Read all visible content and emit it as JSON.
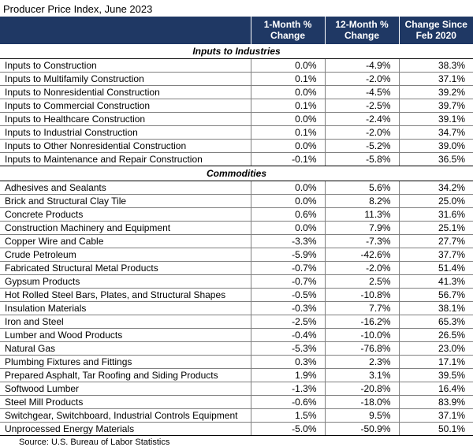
{
  "title": "Producer Price Index, June 2023",
  "columns": [
    "1-Month % Change",
    "12-Month % Change",
    "Change Since Feb 2020"
  ],
  "sections": [
    {
      "name": "Inputs to Industries",
      "rows": [
        {
          "label": "Inputs to Construction",
          "v1": "0.0%",
          "v2": "-4.9%",
          "v3": "38.3%"
        },
        {
          "label": "Inputs to Multifamily Construction",
          "v1": "0.1%",
          "v2": "-2.0%",
          "v3": "37.1%"
        },
        {
          "label": "Inputs to Nonresidential Construction",
          "v1": "0.0%",
          "v2": "-4.5%",
          "v3": "39.2%"
        },
        {
          "label": "Inputs to Commercial Construction",
          "v1": "0.1%",
          "v2": "-2.5%",
          "v3": "39.7%"
        },
        {
          "label": "Inputs to Healthcare Construction",
          "v1": "0.0%",
          "v2": "-2.4%",
          "v3": "39.1%"
        },
        {
          "label": "Inputs to Industrial Construction",
          "v1": "0.1%",
          "v2": "-2.0%",
          "v3": "34.7%"
        },
        {
          "label": "Inputs to Other Nonresidential Construction",
          "v1": "0.0%",
          "v2": "-5.2%",
          "v3": "39.0%"
        },
        {
          "label": "Inputs to Maintenance and Repair Construction",
          "v1": "-0.1%",
          "v2": "-5.8%",
          "v3": "36.5%"
        }
      ]
    },
    {
      "name": "Commodities",
      "rows": [
        {
          "label": "Adhesives and Sealants",
          "v1": "0.0%",
          "v2": "5.6%",
          "v3": "34.2%"
        },
        {
          "label": "Brick and Structural Clay Tile",
          "v1": "0.0%",
          "v2": "8.2%",
          "v3": "25.0%"
        },
        {
          "label": "Concrete Products",
          "v1": "0.6%",
          "v2": "11.3%",
          "v3": "31.6%"
        },
        {
          "label": "Construction Machinery and Equipment",
          "v1": "0.0%",
          "v2": "7.9%",
          "v3": "25.1%"
        },
        {
          "label": "Copper Wire and Cable",
          "v1": "-3.3%",
          "v2": "-7.3%",
          "v3": "27.7%"
        },
        {
          "label": "Crude Petroleum",
          "v1": "-5.9%",
          "v2": "-42.6%",
          "v3": "37.7%"
        },
        {
          "label": "Fabricated Structural Metal Products",
          "v1": "-0.7%",
          "v2": "-2.0%",
          "v3": "51.4%"
        },
        {
          "label": "Gypsum Products",
          "v1": "-0.7%",
          "v2": "2.5%",
          "v3": "41.3%"
        },
        {
          "label": "Hot Rolled Steel Bars, Plates, and Structural Shapes",
          "v1": "-0.5%",
          "v2": "-10.8%",
          "v3": "56.7%"
        },
        {
          "label": "Insulation Materials",
          "v1": "-0.3%",
          "v2": "7.7%",
          "v3": "38.1%"
        },
        {
          "label": "Iron and Steel",
          "v1": "-2.5%",
          "v2": "-16.2%",
          "v3": "65.3%"
        },
        {
          "label": "Lumber and Wood Products",
          "v1": "-0.4%",
          "v2": "-10.0%",
          "v3": "26.5%"
        },
        {
          "label": "Natural Gas",
          "v1": "-5.3%",
          "v2": "-76.8%",
          "v3": "23.0%"
        },
        {
          "label": "Plumbing Fixtures and Fittings",
          "v1": "0.3%",
          "v2": "2.3%",
          "v3": "17.1%"
        },
        {
          "label": "Prepared Asphalt, Tar Roofing and Siding Products",
          "v1": "1.9%",
          "v2": "3.1%",
          "v3": "39.5%"
        },
        {
          "label": "Softwood Lumber",
          "v1": "-1.3%",
          "v2": "-20.8%",
          "v3": "16.4%"
        },
        {
          "label": "Steel Mill Products",
          "v1": "-0.6%",
          "v2": "-18.0%",
          "v3": "83.9%"
        },
        {
          "label": "Switchgear, Switchboard, Industrial Controls Equipment",
          "v1": "1.5%",
          "v2": "9.5%",
          "v3": "37.1%"
        },
        {
          "label": "Unprocessed Energy Materials",
          "v1": "-5.0%",
          "v2": "-50.9%",
          "v3": "50.1%"
        }
      ]
    }
  ],
  "source": "Source: U.S. Bureau of Labor Statistics",
  "colors": {
    "header_bg": "#1f3864",
    "header_fg": "#ffffff",
    "row_border": "#808080",
    "section_border": "#000000"
  }
}
